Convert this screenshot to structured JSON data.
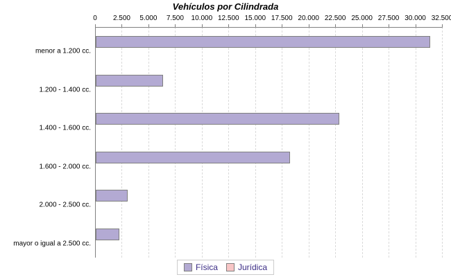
{
  "title": "Vehículos por Cilindrada",
  "legend": {
    "position": "bottom",
    "items": [
      {
        "label": "Física",
        "color": "#b3aad3"
      },
      {
        "label": "Jurídica",
        "color": "#f8c6c6"
      }
    ]
  },
  "colors": {
    "bar_fill_fisica": "#b3aad3",
    "bar_fill_juridica": "#f8c6c6",
    "bar_border": "#7f7f7f",
    "axis_line": "#808080",
    "gridline": "#dadada",
    "title_text": "#000000",
    "tick_text": "#000000",
    "category_text": "#000000",
    "legend_text": "#3b2c85",
    "background": "#ffffff"
  },
  "chart_data": {
    "type": "bar",
    "orientation": "horizontal",
    "title": "Vehículos por Cilindrada",
    "xlabel": "",
    "ylabel": "",
    "categories": [
      "menor a 1.200 cc.",
      "1.200 - 1.400 cc.",
      "1.400 - 1.600 cc.",
      "1.600 - 2.000 cc.",
      "2.000 - 2.500 cc.",
      "mayor o igual a 2.500 cc."
    ],
    "series": [
      {
        "name": "Física",
        "values": [
          31300,
          6300,
          22800,
          18200,
          3000,
          2200
        ]
      },
      {
        "name": "Jurídica",
        "values": [
          0,
          0,
          0,
          0,
          0,
          0
        ]
      }
    ],
    "xlim": [
      0,
      32500
    ],
    "x_ticks": [
      0,
      2500,
      5000,
      7500,
      10000,
      12500,
      15000,
      17500,
      20000,
      22500,
      25000,
      27500,
      30000,
      32500
    ],
    "x_tick_labels": [
      "0",
      "2.500",
      "5.000",
      "7.500",
      "10.000",
      "12.500",
      "15.000",
      "17.500",
      "20.000",
      "22.500",
      "25.000",
      "27.500",
      "30.000",
      "32.500"
    ],
    "grid": "vertical-dashed",
    "axis_position": "top",
    "legend_position": "bottom"
  }
}
